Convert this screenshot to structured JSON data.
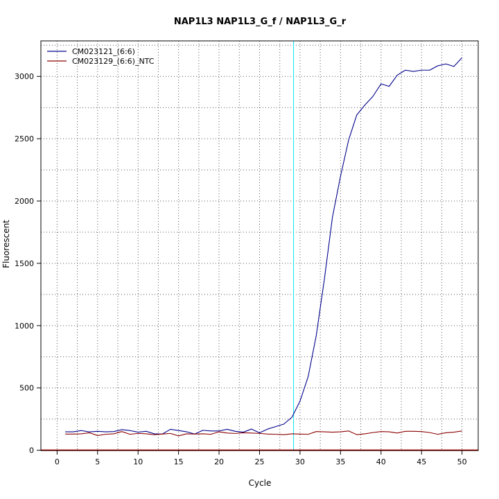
{
  "chart_data": {
    "type": "line",
    "title": "NAP1L3  NAP1L3_G_f / NAP1L3_G_r",
    "xlabel": "Cycle",
    "ylabel": "Fluorescent",
    "xlim": [
      -2,
      52
    ],
    "ylim": [
      -2,
      3285
    ],
    "x_ticks": [
      0,
      5,
      10,
      15,
      20,
      25,
      30,
      35,
      40,
      45,
      50
    ],
    "y_ticks": [
      0,
      500,
      1000,
      1500,
      2000,
      2500,
      3000
    ],
    "grid": true,
    "legend_position": "top-left",
    "threshold_x": 29.2,
    "threshold_color": "#00e5ee",
    "baseline_y": 0,
    "baseline_color": "#cd0000",
    "x": [
      1,
      2,
      3,
      4,
      5,
      6,
      7,
      8,
      9,
      10,
      11,
      12,
      13,
      14,
      15,
      16,
      17,
      18,
      19,
      20,
      21,
      22,
      23,
      24,
      25,
      26,
      27,
      28,
      29,
      30,
      31,
      32,
      33,
      34,
      35,
      36,
      37,
      38,
      39,
      40,
      41,
      42,
      43,
      44,
      45,
      46,
      47,
      48,
      49,
      50
    ],
    "series": [
      {
        "name": "CM023121_(6:6)",
        "color": "#00008b",
        "values": [
          148,
          148,
          158,
          147,
          152,
          148,
          150,
          165,
          158,
          145,
          152,
          132,
          130,
          168,
          158,
          148,
          130,
          160,
          155,
          155,
          168,
          152,
          145,
          170,
          140,
          170,
          190,
          210,
          265,
          395,
          590,
          920,
          1370,
          1870,
          2200,
          2490,
          2690,
          2770,
          2840,
          2940,
          2920,
          3010,
          3050,
          3040,
          3050,
          3050,
          3085,
          3100,
          3080,
          3150
        ]
      },
      {
        "name": "CM023129_(6:6)_NTC",
        "color": "#8b0000",
        "values": [
          130,
          130,
          132,
          140,
          118,
          128,
          132,
          150,
          128,
          135,
          132,
          125,
          130,
          135,
          115,
          132,
          130,
          132,
          128,
          148,
          138,
          135,
          140,
          138,
          135,
          130,
          128,
          125,
          132,
          130,
          128,
          150,
          148,
          145,
          148,
          155,
          125,
          132,
          142,
          150,
          148,
          138,
          152,
          152,
          150,
          142,
          128,
          140,
          145,
          155
        ]
      }
    ]
  }
}
